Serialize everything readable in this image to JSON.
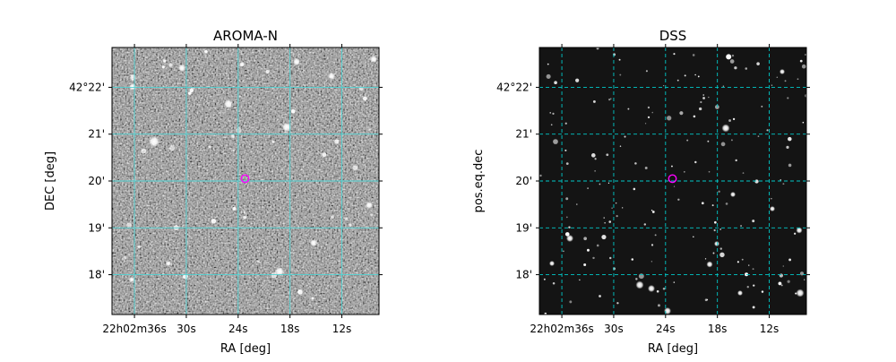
{
  "chart_data": [
    {
      "type": "image",
      "title": "AROMA-N",
      "xlabel": "RA [deg]",
      "ylabel": "DEC [deg]",
      "x_ticks": [
        "22h02m36s",
        "30s",
        "24s",
        "18s",
        "12s"
      ],
      "x_tick_values_s": [
        36,
        30,
        24,
        18,
        12
      ],
      "y_ticks": [
        "42°22'",
        "21'",
        "20'",
        "19'",
        "18'"
      ],
      "y_tick_values_arcmin": [
        22,
        21,
        20,
        19,
        18
      ],
      "xlim_s": [
        38.6,
        7.7
      ],
      "ylim_arcmin": [
        17.15,
        22.85
      ],
      "grid": true,
      "grid_color": "#4fd3d3",
      "grid_style": "solid",
      "background": "noisy-grayscale",
      "marker": {
        "shape": "circle",
        "color": "#ff00ff",
        "ra_s": 23.2,
        "dec_arcmin": 20.05
      }
    },
    {
      "type": "image",
      "title": "DSS",
      "xlabel": "RA [deg]",
      "ylabel": "pos.eq.dec",
      "x_ticks": [
        "22h02m36s",
        "30s",
        "24s",
        "18s",
        "12s"
      ],
      "x_tick_values_s": [
        36,
        30,
        24,
        18,
        12
      ],
      "y_ticks": [
        "42°22'",
        "21'",
        "20'",
        "19'",
        "18'"
      ],
      "y_tick_values_arcmin": [
        22,
        21,
        20,
        19,
        18
      ],
      "xlim_s": [
        38.6,
        7.7
      ],
      "ylim_arcmin": [
        17.15,
        22.85
      ],
      "grid": true,
      "grid_color": "#00c8c8",
      "grid_style": "dashed",
      "background": "dark-starfield",
      "marker": {
        "shape": "circle",
        "color": "#ff00ff",
        "ra_s": 23.2,
        "dec_arcmin": 20.05
      }
    }
  ]
}
